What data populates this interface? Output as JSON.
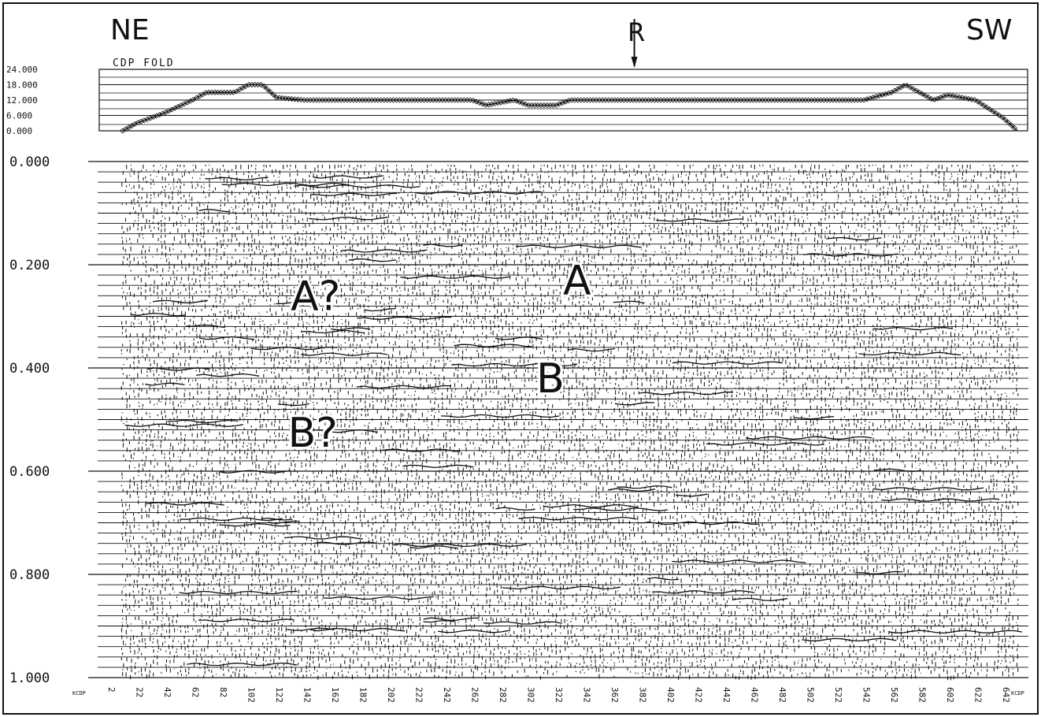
{
  "labels": {
    "left_direction": "NE",
    "right_direction": "SW",
    "marker": "R",
    "fold_title": "CDP FOLD",
    "cdp_axis_left": "KCDP",
    "cdp_axis_right": "KCDP"
  },
  "annotations": [
    {
      "text": "A?",
      "cdp": 150,
      "time": 0.26
    },
    {
      "text": "A",
      "cdp": 337,
      "time": 0.23
    },
    {
      "text": "B",
      "cdp": 318,
      "time": 0.42
    },
    {
      "text": "B?",
      "cdp": 148,
      "time": 0.525
    }
  ],
  "marker_cdp": 378,
  "chart_data": [
    {
      "type": "line",
      "title": "CDP FOLD",
      "ylim": [
        0,
        24
      ],
      "yticks": [
        "24.000",
        "18.000",
        "12.000",
        "6.000",
        "0.000"
      ],
      "ytick_values": [
        24,
        18,
        12,
        6,
        0
      ],
      "x": [
        12,
        22,
        42,
        62,
        72,
        92,
        102,
        112,
        122,
        142,
        162,
        242,
        262,
        272,
        292,
        302,
        322,
        332,
        342,
        362,
        382,
        542,
        562,
        572,
        582,
        592,
        602,
        622,
        642,
        652
      ],
      "series": [
        {
          "values": [
            0,
            3,
            7,
            12,
            15,
            15,
            18,
            18,
            13,
            12,
            12,
            12,
            12,
            10,
            12,
            10,
            10,
            12,
            12,
            12,
            12,
            12,
            15,
            18,
            15,
            12,
            14,
            12,
            5,
            0
          ]
        }
      ],
      "marker_style": "diamond"
    },
    {
      "type": "heatmap",
      "description_units": "seismic section, two-way time (s) vs CDP",
      "ylim": [
        0,
        1
      ],
      "yticks": [
        "0.000",
        "0.200",
        "0.400",
        "0.600",
        "0.800",
        "1.000"
      ],
      "ytick_values": [
        0,
        0.2,
        0.4,
        0.6,
        0.8,
        1.0
      ],
      "xlim": [
        2,
        652
      ],
      "xticks": [
        "2",
        "22",
        "42",
        "62",
        "82",
        "102",
        "122",
        "142",
        "162",
        "182",
        "202",
        "222",
        "242",
        "262",
        "282",
        "302",
        "322",
        "342",
        "362",
        "382",
        "402",
        "422",
        "442",
        "462",
        "482",
        "502",
        "522",
        "542",
        "562",
        "582",
        "602",
        "622",
        "642"
      ],
      "xtick_values": [
        2,
        22,
        42,
        62,
        82,
        102,
        122,
        142,
        162,
        182,
        202,
        222,
        242,
        262,
        282,
        302,
        322,
        342,
        362,
        382,
        402,
        422,
        442,
        462,
        482,
        502,
        522,
        542,
        562,
        582,
        602,
        622,
        642
      ],
      "data_cdp_range": [
        12,
        652
      ]
    }
  ],
  "colors": {
    "ink": "#111111",
    "paper": "#ffffff"
  }
}
